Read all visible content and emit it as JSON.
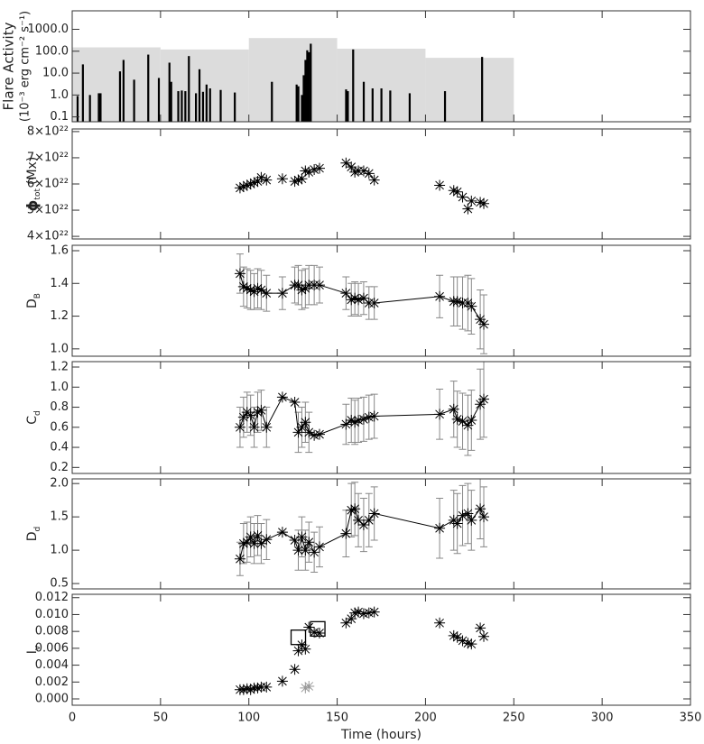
{
  "chart_data": [
    {
      "type": "bar",
      "ylabel": "Flare Activity",
      "ylabel2": "(10⁻³ erg cm⁻² s⁻¹)",
      "ylog": true,
      "ylim": [
        0.06,
        7000
      ],
      "yticks": [
        0.1,
        {
          "value": 1,
          "label": "1.0"
        },
        {
          "value": 10,
          "label": "10.0"
        },
        {
          "value": 100,
          "label": "100.0"
        },
        {
          "value": 1000,
          "label": "1000.0"
        }
      ],
      "xlim": [
        0,
        350
      ],
      "xticks": [
        0,
        50,
        100,
        150,
        200,
        250,
        300,
        350
      ],
      "background": {
        "bins": [
          0,
          50,
          100,
          150,
          200,
          250
        ],
        "values": [
          150,
          120,
          400,
          130,
          50
        ],
        "color": "#dcdcdc"
      },
      "series": [
        {
          "color": "#000000",
          "x": [
            3,
            6,
            10,
            15,
            16,
            27,
            29,
            35,
            43,
            49,
            55,
            56,
            60,
            62,
            64,
            66,
            70,
            72,
            74,
            76,
            78,
            84,
            92,
            113,
            127,
            128,
            130,
            131,
            132,
            133,
            134,
            135,
            155,
            156,
            159,
            165,
            170,
            175,
            180,
            191,
            211,
            232
          ],
          "values": [
            0.9,
            25,
            1.0,
            1.2,
            1.2,
            12,
            40,
            5,
            70,
            6,
            30,
            4,
            1.5,
            1.6,
            1.5,
            60,
            1.2,
            15,
            1.4,
            3,
            2,
            1.7,
            1.3,
            4,
            3,
            2.5,
            1,
            8,
            40,
            110,
            90,
            220,
            1.8,
            1.5,
            120,
            4,
            2,
            2,
            1.6,
            1.2,
            1.5,
            55
          ]
        }
      ]
    },
    {
      "type": "scatter",
      "ylabel": "ϕ",
      "ylabel_sub": "tot",
      "ylabel_unit": "(Mx)",
      "ylim": [
        3.9e+22,
        8.1e+22
      ],
      "yticks": [
        {
          "value": 4e+22,
          "label": "4×10²²"
        },
        {
          "value": 5e+22,
          "label": "5×10²²"
        },
        {
          "value": 6e+22,
          "label": "6×10²²"
        },
        {
          "value": 7e+22,
          "label": "7×10²²"
        },
        {
          "value": 8e+22,
          "label": "8×10²²"
        }
      ],
      "xlim": [
        0,
        350
      ],
      "xticks": [
        0,
        50,
        100,
        150,
        200,
        250,
        300,
        350
      ],
      "series": [
        {
          "color": "#000000",
          "marker": "asterisk",
          "x": [
            95,
            97,
            99,
            101,
            103,
            105,
            107,
            110,
            119,
            126,
            128,
            130,
            132,
            134,
            137,
            140,
            155,
            158,
            160,
            162,
            165,
            168,
            171,
            208,
            216,
            218,
            221,
            224,
            226,
            231,
            233
          ],
          "values": [
            5.85e+22,
            5.9e+22,
            5.95e+22,
            6e+22,
            6.05e+22,
            6.1e+22,
            6.25e+22,
            6.15e+22,
            6.2e+22,
            6.1e+22,
            6.15e+22,
            6.2e+22,
            6.5e+22,
            6.45e+22,
            6.55e+22,
            6.6e+22,
            6.8e+22,
            6.65e+22,
            6.45e+22,
            6.5e+22,
            6.5e+22,
            6.4e+22,
            6.15e+22,
            5.95e+22,
            5.75e+22,
            5.7e+22,
            5.5e+22,
            5.05e+22,
            5.35e+22,
            5.3e+22,
            5.25e+22
          ]
        }
      ]
    },
    {
      "type": "line",
      "ylabel": "D",
      "ylabel_sub": "B",
      "ylim": [
        0.955,
        1.633
      ],
      "yticks": [
        {
          "value": 1,
          "label": "1.0"
        },
        1.2,
        1.4,
        1.6
      ],
      "xlim": [
        0,
        350
      ],
      "xticks": [
        0,
        50,
        100,
        150,
        200,
        250,
        300,
        350
      ],
      "series": [
        {
          "color": "#000000",
          "error_color": "#888888",
          "marker": "asterisk",
          "x": [
            95,
            97,
            99,
            101,
            103,
            105,
            107,
            110,
            119,
            126,
            128,
            130,
            132,
            134,
            137,
            140,
            155,
            158,
            160,
            162,
            165,
            168,
            171,
            208,
            216,
            218,
            221,
            224,
            226,
            231,
            233
          ],
          "values": [
            1.46,
            1.38,
            1.37,
            1.36,
            1.35,
            1.37,
            1.36,
            1.34,
            1.34,
            1.39,
            1.39,
            1.36,
            1.37,
            1.39,
            1.39,
            1.39,
            1.34,
            1.3,
            1.31,
            1.3,
            1.31,
            1.28,
            1.28,
            1.32,
            1.29,
            1.29,
            1.28,
            1.28,
            1.26,
            1.18,
            1.15
          ],
          "errors": [
            0.12,
            0.12,
            0.12,
            0.12,
            0.11,
            0.12,
            0.12,
            0.11,
            0.1,
            0.11,
            0.12,
            0.12,
            0.12,
            0.12,
            0.12,
            0.11,
            0.1,
            0.1,
            0.1,
            0.1,
            0.1,
            0.1,
            0.1,
            0.13,
            0.15,
            0.15,
            0.16,
            0.17,
            0.17,
            0.18,
            0.18
          ]
        }
      ]
    },
    {
      "type": "line",
      "ylabel": "C",
      "ylabel_sub": "d",
      "ylim": [
        0.14,
        1.254
      ],
      "yticks": [
        0.2,
        0.4,
        0.6,
        0.8,
        {
          "value": 1,
          "label": "1.0"
        },
        1.2
      ],
      "xlim": [
        0,
        350
      ],
      "xticks": [
        0,
        50,
        100,
        150,
        200,
        250,
        300,
        350
      ],
      "series": [
        {
          "color": "#000000",
          "error_color": "#888888",
          "marker": "asterisk",
          "x": [
            95,
            97,
            99,
            101,
            103,
            105,
            107,
            110,
            119,
            126,
            128,
            130,
            132,
            134,
            137,
            140,
            155,
            158,
            160,
            162,
            165,
            168,
            171,
            208,
            216,
            218,
            221,
            224,
            226,
            231,
            233
          ],
          "values": [
            0.6,
            0.7,
            0.75,
            0.72,
            0.6,
            0.75,
            0.77,
            0.6,
            0.9,
            0.85,
            0.55,
            0.6,
            0.65,
            0.55,
            0.52,
            0.53,
            0.63,
            0.67,
            0.65,
            0.67,
            0.68,
            0.7,
            0.71,
            0.73,
            0.78,
            0.68,
            0.66,
            0.62,
            0.67,
            0.83,
            0.88
          ],
          "errors": [
            0.2,
            0.2,
            0.2,
            0.2,
            0.2,
            0.2,
            0.2,
            0.2,
            0.0,
            0.0,
            0.2,
            0.2,
            0.2,
            0.2,
            0.0,
            0.0,
            0.2,
            0.22,
            0.22,
            0.22,
            0.22,
            0.22,
            0.22,
            0.25,
            0.28,
            0.28,
            0.28,
            0.3,
            0.3,
            0.35,
            0.38
          ]
        }
      ]
    },
    {
      "type": "line",
      "ylabel": "D",
      "ylabel_sub": "d",
      "ylim": [
        0.42,
        2.07
      ],
      "yticks": [
        0.5,
        {
          "value": 1,
          "label": "1.0"
        },
        1.5,
        {
          "value": 2,
          "label": "2.0"
        }
      ],
      "xlim": [
        0,
        350
      ],
      "xticks": [
        0,
        50,
        100,
        150,
        200,
        250,
        300,
        350
      ],
      "series": [
        {
          "color": "#000000",
          "error_color": "#888888",
          "marker": "asterisk",
          "x": [
            95,
            97,
            99,
            101,
            103,
            105,
            107,
            110,
            119,
            126,
            128,
            130,
            132,
            134,
            137,
            140,
            155,
            158,
            160,
            162,
            165,
            168,
            171,
            208,
            216,
            218,
            221,
            224,
            226,
            231,
            233
          ],
          "values": [
            0.87,
            1.1,
            1.12,
            1.2,
            1.1,
            1.22,
            1.1,
            1.16,
            1.27,
            1.15,
            1.0,
            1.2,
            1.0,
            1.12,
            0.97,
            1.05,
            1.25,
            1.6,
            1.62,
            1.45,
            1.38,
            1.45,
            1.55,
            1.33,
            1.45,
            1.4,
            1.52,
            1.55,
            1.45,
            1.62,
            1.5
          ],
          "errors": [
            0.25,
            0.3,
            0.3,
            0.3,
            0.3,
            0.3,
            0.3,
            0.3,
            0.0,
            0.0,
            0.3,
            0.3,
            0.3,
            0.3,
            0.3,
            0.3,
            0.35,
            0.4,
            0.4,
            0.4,
            0.4,
            0.4,
            0.4,
            0.45,
            0.45,
            0.45,
            0.45,
            0.45,
            0.45,
            0.45,
            0.45
          ]
        }
      ]
    },
    {
      "type": "scatter",
      "ylabel": "I",
      "ylabel_sub": "v",
      "xlabel": "Time (hours)",
      "ylim": [
        -0.00075,
        0.0124
      ],
      "yticks": [
        {
          "value": 0,
          "label": "0.000"
        },
        {
          "value": 0.002,
          "label": "0.002"
        },
        {
          "value": 0.004,
          "label": "0.004"
        },
        {
          "value": 0.006,
          "label": "0.006"
        },
        {
          "value": 0.008,
          "label": "0.008"
        },
        {
          "value": 0.01,
          "label": "0.010"
        },
        {
          "value": 0.012,
          "label": "0.012"
        }
      ],
      "xlim": [
        0,
        350
      ],
      "xticks": [
        0,
        50,
        100,
        150,
        200,
        250,
        300,
        350
      ],
      "series": [
        {
          "color": "#000000",
          "marker": "asterisk",
          "x": [
            95,
            97,
            99,
            101,
            103,
            105,
            107,
            110,
            119,
            126,
            128,
            130,
            132,
            134,
            137,
            140,
            155,
            158,
            160,
            162,
            165,
            168,
            171,
            208,
            216,
            218,
            221,
            224,
            226,
            231,
            233
          ],
          "values": [
            0.0011,
            0.0011,
            0.0012,
            0.0011,
            0.0013,
            0.0013,
            0.0014,
            0.0014,
            0.0021,
            0.0035,
            0.0057,
            0.0064,
            0.0059,
            0.0085,
            0.0079,
            0.0078,
            0.009,
            0.0095,
            0.0102,
            0.0103,
            0.0101,
            0.0102,
            0.0103,
            0.009,
            0.0075,
            0.0073,
            0.0069,
            0.0066,
            0.0065,
            0.0084,
            0.0074
          ]
        },
        {
          "color": "#999999",
          "marker": "asterisk",
          "x": [
            132,
            134
          ],
          "values": [
            0.0013,
            0.0015
          ]
        },
        {
          "color": "#000000",
          "marker": "square",
          "x": [
            128,
            139
          ],
          "values": [
            0.0073,
            0.0083
          ]
        }
      ]
    }
  ]
}
